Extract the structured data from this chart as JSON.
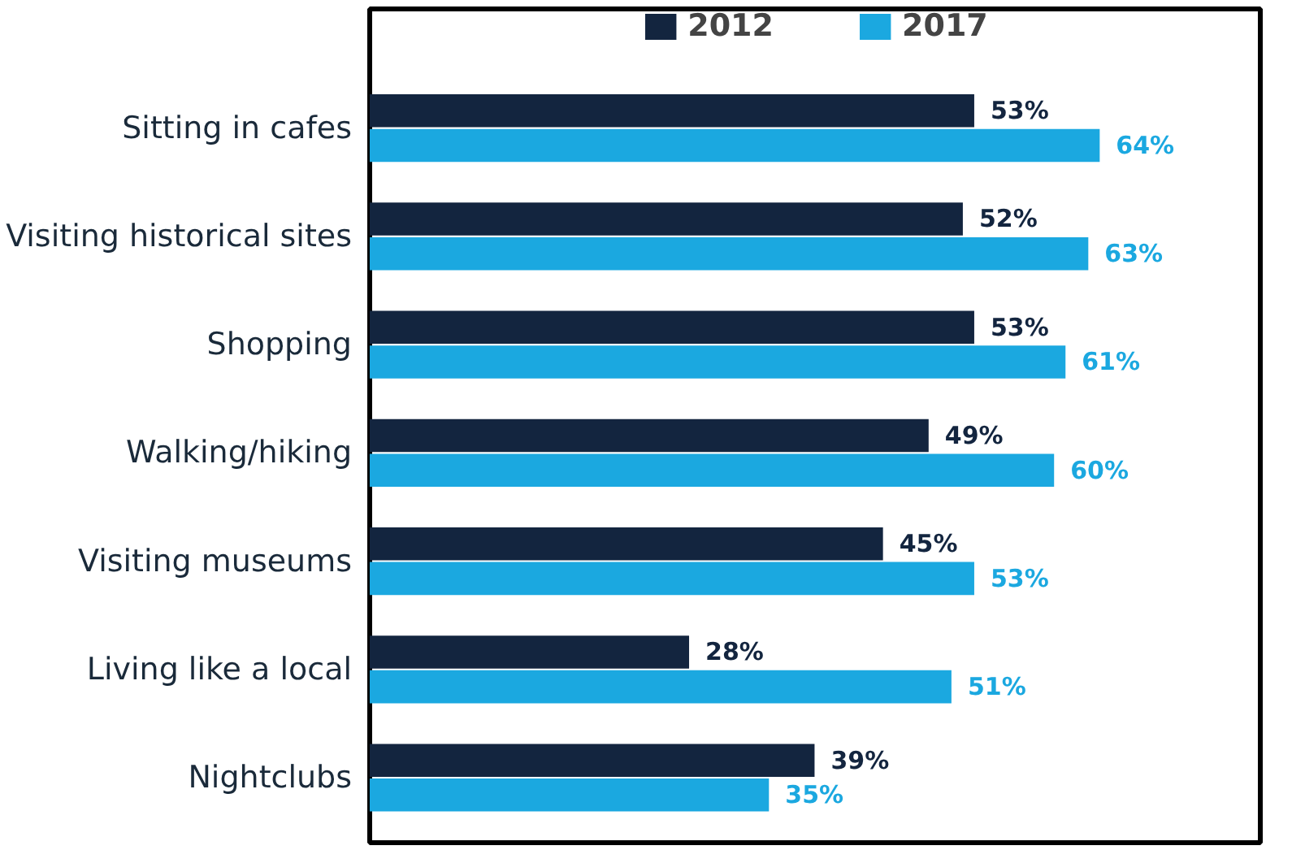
{
  "chart_data": {
    "type": "bar",
    "orientation": "horizontal",
    "categories": [
      "Sitting in cafes",
      "Visiting historical sites",
      "Shopping",
      "Walking/hiking",
      "Visiting museums",
      "Living like a local",
      "Nightclubs"
    ],
    "series": [
      {
        "name": "2012",
        "color": "#13253f",
        "values": [
          53,
          52,
          53,
          49,
          45,
          28,
          39
        ],
        "value_labels": [
          "53%",
          "52%",
          "53%",
          "49%",
          "45%",
          "28%",
          "39%"
        ]
      },
      {
        "name": "2017",
        "color": "#1ba8e0",
        "values": [
          64,
          63,
          61,
          60,
          53,
          51,
          35
        ],
        "value_labels": [
          "64%",
          "63%",
          "61%",
          "60%",
          "53%",
          "51%",
          "35%"
        ]
      }
    ],
    "legend": "top",
    "grid": false
  }
}
